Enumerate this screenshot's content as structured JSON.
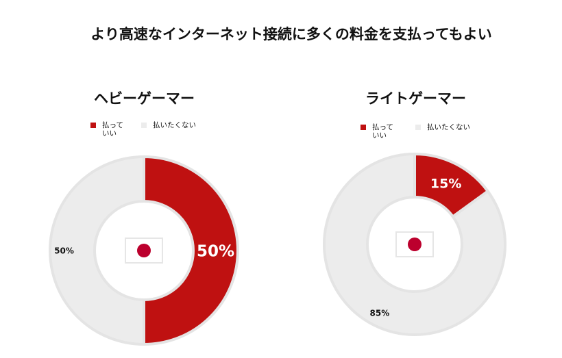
{
  "title": "より高速なインターネット接続に多くの料金を支払ってもよい",
  "colors": {
    "pay": "#bf1111",
    "notpay": "#ececec",
    "ring": "#e4e4e4",
    "flag_red": "#bc002d"
  },
  "icons": {
    "flag": "japan-flag-icon"
  },
  "chart_data": [
    {
      "type": "pie",
      "title": "ヘビーゲーマー",
      "legend": [
        "払って いい",
        "払いたくない"
      ],
      "slices": [
        {
          "label": "払って いい",
          "value": 50,
          "display": "50%"
        },
        {
          "label": "払いたくない",
          "value": 50,
          "display": "50%"
        }
      ]
    },
    {
      "type": "pie",
      "title": "ライトゲーマー",
      "legend": [
        "払って いい",
        "払いたくない"
      ],
      "slices": [
        {
          "label": "払って いい",
          "value": 15,
          "display": "15%"
        },
        {
          "label": "払いたくない",
          "value": 85,
          "display": "85%"
        }
      ]
    }
  ]
}
